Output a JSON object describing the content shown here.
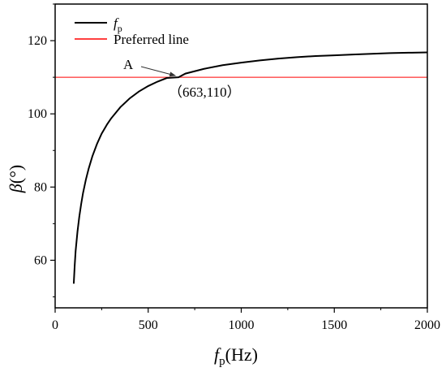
{
  "chart_data": {
    "type": "line",
    "xlabel_symbol": "f",
    "xlabel_sub": "p",
    "xlabel_unit": "(Hz)",
    "ylabel_symbol": "β",
    "ylabel_unit": "(°)",
    "xlim": [
      0,
      2000
    ],
    "ylim": [
      47,
      130
    ],
    "xticks": [
      0,
      500,
      1000,
      1500,
      2000
    ],
    "yticks": [
      60,
      80,
      100,
      120
    ],
    "grid": false,
    "legend_position": "top-left",
    "series": [
      {
        "name_symbol": "f",
        "name_sub": "p",
        "color": "#000000",
        "x": [
          100,
          105,
          110,
          120,
          130,
          140,
          150,
          165,
          180,
          200,
          225,
          250,
          280,
          300,
          350,
          400,
          450,
          500,
          550,
          600,
          663,
          700,
          800,
          900,
          1000,
          1100,
          1200,
          1300,
          1400,
          1500,
          1600,
          1700,
          1800,
          1900,
          2000
        ],
        "y": [
          53.6,
          58.5,
          62.5,
          67.8,
          72.0,
          75.4,
          78.4,
          82.0,
          85.0,
          88.4,
          91.8,
          94.6,
          97.2,
          98.7,
          101.8,
          104.2,
          106.1,
          107.6,
          108.8,
          109.8,
          110.0,
          111.0,
          112.3,
          113.3,
          114.0,
          114.6,
          115.1,
          115.5,
          115.8,
          116.0,
          116.2,
          116.4,
          116.6,
          116.7,
          116.8
        ]
      }
    ],
    "reference_line": {
      "name": "Preferred line",
      "y": 110,
      "color": "#ff0000"
    },
    "annotation": {
      "label": "A",
      "point_label": "（663,110）",
      "x": 663,
      "y": 110
    }
  }
}
